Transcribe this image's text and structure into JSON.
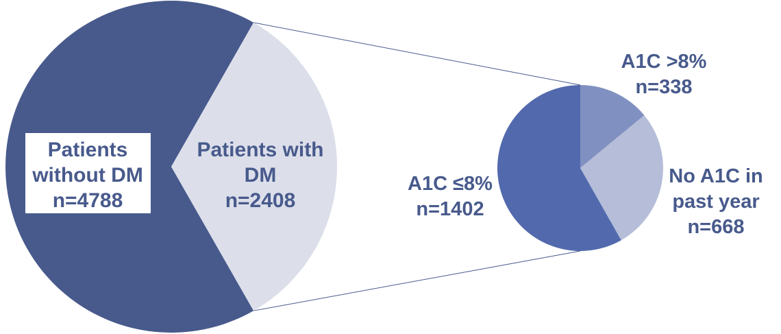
{
  "chart_data": [
    {
      "type": "pie",
      "categories": [
        "Patients without DM",
        "Patients with DM"
      ],
      "values": [
        4788,
        2408
      ],
      "labels": [
        {
          "lines": [
            "Patients",
            "without DM",
            "n=4788"
          ]
        },
        {
          "lines": [
            "Patients with",
            "DM",
            "n=2408"
          ]
        }
      ],
      "colors": [
        "#485a8c",
        "#dcdfea"
      ]
    },
    {
      "type": "pie",
      "categories": [
        "A1C >8%",
        "No A1C in past year",
        "A1C ≤8%"
      ],
      "values": [
        338,
        668,
        1402
      ],
      "labels": [
        {
          "lines": [
            "A1C >8%",
            "n=338"
          ]
        },
        {
          "lines": [
            "No A1C in",
            "past year",
            "n=668"
          ]
        },
        {
          "lines": [
            "A1C ≤8%",
            "n=1402"
          ]
        }
      ],
      "colors": [
        "#8090c0",
        "#b5bdd8",
        "#526aad"
      ],
      "exploded_from": "Patients with DM"
    }
  ]
}
